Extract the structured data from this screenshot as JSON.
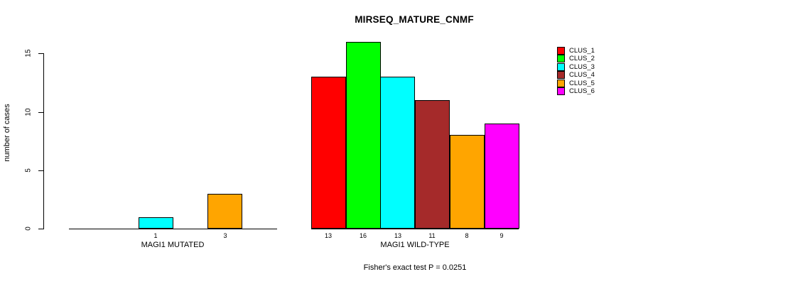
{
  "chart": {
    "title": "MIRSEQ_MATURE_CNMF"
  },
  "chart_data": {
    "type": "bar",
    "title": "MIRSEQ_MATURE_CNMF",
    "xlabel": "",
    "ylabel": "number of cases",
    "ylim": [
      0,
      16
    ],
    "yticks": [
      0,
      5,
      10,
      15
    ],
    "grid": false,
    "legend_position": "top-right",
    "categories": [
      "MAGI1 MUTATED",
      "MAGI1 WILD-TYPE"
    ],
    "series": [
      {
        "name": "CLUS_1",
        "color": "#FF0000",
        "values": [
          0,
          13
        ]
      },
      {
        "name": "CLUS_2",
        "color": "#00FF00",
        "values": [
          0,
          16
        ]
      },
      {
        "name": "CLUS_3",
        "color": "#00FFFF",
        "values": [
          1,
          13
        ]
      },
      {
        "name": "CLUS_4",
        "color": "#A52A2A",
        "values": [
          0,
          11
        ]
      },
      {
        "name": "CLUS_5",
        "color": "#FFA500",
        "values": [
          3,
          8
        ]
      },
      {
        "name": "CLUS_6",
        "color": "#FF00FF",
        "values": [
          0,
          9
        ]
      }
    ],
    "bar_value_labels": [
      [
        "",
        "",
        "1",
        "",
        "3",
        ""
      ],
      [
        "13",
        "16",
        "13",
        "11",
        "8",
        "9"
      ]
    ],
    "annotation": "Fisher's exact test P = 0.0251",
    "axis_color": "#000000",
    "background_color": "#FFFFFF"
  }
}
